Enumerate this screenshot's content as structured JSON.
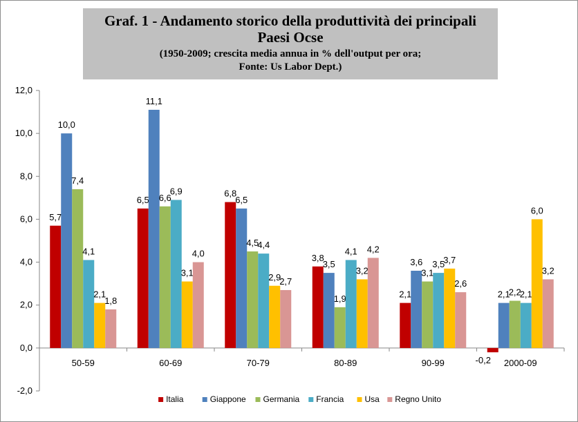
{
  "header": {
    "title": "Graf. 1 - Andamento  storico della produttività dei principali Paesi Ocse",
    "subtitle_line1": "(1950-2009; crescita media annua in % dell'output per ora;",
    "subtitle_line2": "Fonte: Us Labor Dept.)"
  },
  "chart_data": {
    "type": "bar",
    "title": "Graf. 1 - Andamento  storico della produttività dei principali Paesi Ocse",
    "subtitle": "(1950-2009; crescita media annua in % dell'output per ora; Fonte: Us Labor Dept.)",
    "xlabel": "",
    "ylabel": "",
    "ylim": [
      -2,
      12
    ],
    "yticks": [
      "-2,0",
      "0,0",
      "2,0",
      "4,0",
      "6,0",
      "8,0",
      "10,0",
      "12,0"
    ],
    "categories": [
      "50-59",
      "60-69",
      "70-79",
      "80-89",
      "90-99",
      "2000-09"
    ],
    "grid": false,
    "legend_position": "bottom",
    "decimal_separator": ",",
    "series": [
      {
        "name": "Italia",
        "color": "#c00000",
        "values": [
          5.7,
          6.5,
          6.8,
          3.8,
          2.1,
          -0.2
        ]
      },
      {
        "name": "Giappone",
        "color": "#4f81bd",
        "values": [
          10.0,
          11.1,
          6.5,
          3.5,
          3.6,
          2.1
        ]
      },
      {
        "name": "Germania",
        "color": "#9bbb59",
        "values": [
          7.4,
          6.6,
          4.5,
          1.9,
          3.1,
          2.2
        ]
      },
      {
        "name": "Francia",
        "color": "#4bacc6",
        "values": [
          4.1,
          6.9,
          4.4,
          4.1,
          3.5,
          2.1
        ]
      },
      {
        "name": "Usa",
        "color": "#ffc000",
        "values": [
          2.1,
          3.1,
          2.9,
          3.2,
          3.7,
          6.0
        ]
      },
      {
        "name": "Regno Unito",
        "color": "#d99694",
        "values": [
          1.8,
          4.0,
          2.7,
          4.2,
          2.6,
          3.2
        ]
      }
    ]
  }
}
